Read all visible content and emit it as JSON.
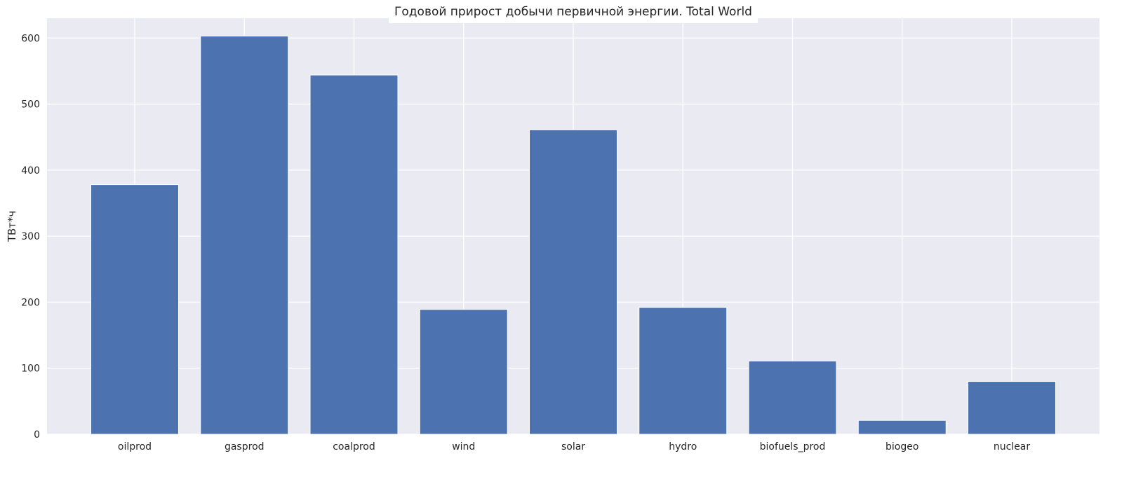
{
  "chart_data": {
    "type": "bar",
    "title": "Годовой прирост добычи первичной энергии. Total World",
    "xlabel": "",
    "ylabel": "ТВт*ч",
    "categories": [
      "oilprod",
      "gasprod",
      "coalprod",
      "wind",
      "solar",
      "hydro",
      "biofuels_prod",
      "biogeo",
      "nuclear"
    ],
    "values": [
      378,
      603,
      544,
      189,
      461,
      192,
      111,
      21,
      80
    ],
    "ylim": [
      0,
      630
    ],
    "yticks": [
      0,
      100,
      200,
      300,
      400,
      500,
      600
    ],
    "grid": true,
    "legend": "none",
    "colors": {
      "bar": "#4c72b0",
      "background": "#eaeaf2",
      "grid": "#ffffff"
    }
  }
}
